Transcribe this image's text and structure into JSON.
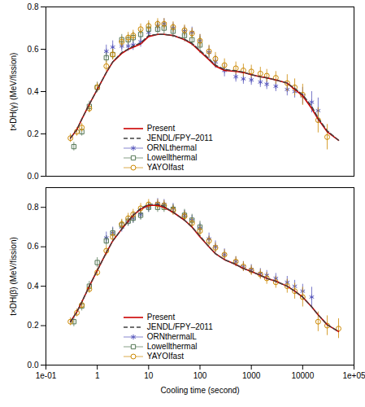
{
  "chart_data": [
    {
      "type": "line",
      "ylabel": "t×DH(γ) (MeV/fission)",
      "log": "x",
      "xlim": [
        0.1,
        100000.0
      ],
      "ylim": [
        0,
        0.8
      ],
      "yticks": [
        {
          "value": 0,
          "label": "0.0"
        },
        0.2,
        0.4,
        0.6,
        0.8
      ],
      "grid": false,
      "legend": "lower left",
      "tick_labels": "y",
      "series": [
        {
          "name": "Present",
          "type": "line",
          "color": "#cc0000",
          "line_style": "solid",
          "x": [
            0.3,
            0.4,
            0.5,
            0.7,
            1.0,
            1.5,
            2.0,
            3.0,
            4.0,
            5.0,
            7.0,
            10.0,
            15.0,
            20.0,
            30.0,
            50.0,
            70.0,
            100.0,
            150.0,
            200.0,
            300.0,
            500.0,
            700.0,
            1000.0,
            1500.0,
            2000.0,
            3000.0,
            5000.0,
            7000.0,
            10000.0,
            15000.0,
            20000.0,
            30000.0,
            50000.0
          ],
          "values": [
            0.18,
            0.22,
            0.27,
            0.34,
            0.41,
            0.49,
            0.54,
            0.58,
            0.6,
            0.61,
            0.625,
            0.66,
            0.67,
            0.67,
            0.665,
            0.645,
            0.625,
            0.59,
            0.55,
            0.52,
            0.5,
            0.495,
            0.49,
            0.48,
            0.47,
            0.465,
            0.455,
            0.44,
            0.41,
            0.38,
            0.32,
            0.27,
            0.21,
            0.17
          ]
        },
        {
          "name": "JENDL/FPY–2011",
          "type": "line",
          "color": "#404040",
          "line_style": "dashed",
          "x": [
            0.3,
            0.4,
            0.5,
            0.7,
            1.0,
            1.5,
            2.0,
            3.0,
            4.0,
            5.0,
            7.0,
            10.0,
            15.0,
            20.0,
            30.0,
            50.0,
            70.0,
            100.0,
            150.0,
            200.0,
            300.0,
            500.0,
            700.0,
            1000.0,
            1500.0,
            2000.0,
            3000.0,
            5000.0,
            7000.0,
            10000.0,
            15000.0,
            20000.0,
            30000.0,
            50000.0
          ],
          "values": [
            0.18,
            0.22,
            0.27,
            0.34,
            0.41,
            0.49,
            0.54,
            0.585,
            0.6,
            0.615,
            0.63,
            0.665,
            0.67,
            0.67,
            0.665,
            0.648,
            0.628,
            0.595,
            0.555,
            0.525,
            0.505,
            0.498,
            0.492,
            0.48,
            0.47,
            0.465,
            0.455,
            0.44,
            0.415,
            0.385,
            0.33,
            0.275,
            0.215,
            0.17
          ]
        },
        {
          "name": "ORNLthermal",
          "type": "scatter",
          "color": "#5555bb",
          "marker": "asterisk",
          "x": [
            1.5,
            2.0,
            3.0,
            4.0,
            5.0,
            7.0,
            10.0,
            15.0,
            20.0,
            30.0,
            50.0,
            70.0,
            100.0,
            150.0,
            200.0,
            300.0,
            500.0,
            700.0,
            1000.0,
            1500.0,
            2000.0,
            3000.0,
            5000.0,
            7000.0,
            10000.0,
            15000.0,
            20000.0
          ],
          "values": [
            0.59,
            0.61,
            0.615,
            0.615,
            0.62,
            0.635,
            0.68,
            0.71,
            0.72,
            0.7,
            0.685,
            0.68,
            0.64,
            0.585,
            0.54,
            0.5,
            0.47,
            0.46,
            0.455,
            0.445,
            0.435,
            0.425,
            0.41,
            0.4,
            0.38,
            0.35,
            0.31
          ],
          "errors": [
            0.03,
            0.03,
            0.025,
            0.025,
            0.025,
            0.025,
            0.025,
            0.025,
            0.025,
            0.025,
            0.025,
            0.025,
            0.03,
            0.03,
            0.03,
            0.03,
            0.025,
            0.025,
            0.025,
            0.025,
            0.025,
            0.025,
            0.03,
            0.03,
            0.04,
            0.05,
            0.06
          ]
        },
        {
          "name": "Lowellthermal",
          "type": "scatter",
          "color": "#557755",
          "marker": "square",
          "x": [
            0.35,
            0.5,
            0.7,
            1.0,
            1.5,
            2.0,
            3.0,
            4.0,
            5.0,
            7.0,
            10.0,
            15.0,
            20.0,
            30.0,
            50.0,
            70.0,
            100.0
          ],
          "values": [
            0.14,
            0.21,
            0.33,
            0.42,
            0.56,
            0.575,
            0.645,
            0.645,
            0.655,
            0.67,
            0.695,
            0.695,
            0.7,
            0.685,
            0.665,
            0.645,
            0.62
          ],
          "errors": [
            0.02,
            0.02,
            0.025,
            0.025,
            0.025,
            0.025,
            0.025,
            0.025,
            0.025,
            0.025,
            0.03,
            0.03,
            0.03,
            0.03,
            0.03,
            0.03,
            0.04
          ]
        },
        {
          "name": "YAYOIfast",
          "type": "scatter",
          "color": "#cc8800",
          "marker": "circle",
          "x": [
            0.3,
            0.4,
            0.5,
            0.7,
            1.0,
            1.5,
            2.0,
            3.0,
            4.0,
            5.0,
            7.0,
            10.0,
            15.0,
            20.0,
            30.0,
            50.0,
            70.0,
            100.0,
            150.0,
            200.0,
            300.0,
            500.0,
            700.0,
            1000.0,
            1500.0,
            2000.0,
            3000.0,
            5000.0,
            7000.0,
            10000.0,
            20000.0,
            30000.0
          ],
          "values": [
            0.18,
            0.21,
            0.23,
            0.32,
            0.42,
            0.52,
            0.575,
            0.635,
            0.655,
            0.665,
            0.695,
            0.71,
            0.72,
            0.72,
            0.705,
            0.69,
            0.675,
            0.64,
            0.59,
            0.555,
            0.525,
            0.51,
            0.5,
            0.495,
            0.485,
            0.475,
            0.465,
            0.44,
            0.42,
            0.385,
            0.265,
            0.185
          ],
          "errors": [
            0.02,
            0.02,
            0.02,
            0.02,
            0.02,
            0.025,
            0.025,
            0.025,
            0.025,
            0.025,
            0.025,
            0.025,
            0.025,
            0.025,
            0.025,
            0.025,
            0.025,
            0.03,
            0.03,
            0.03,
            0.03,
            0.03,
            0.03,
            0.03,
            0.03,
            0.03,
            0.03,
            0.04,
            0.04,
            0.05,
            0.06,
            0.06
          ]
        }
      ]
    },
    {
      "type": "line",
      "xlabel": "Cooling time (second)",
      "ylabel": "t×DH(β) (MeV/fission)",
      "log": "x",
      "xlim": [
        0.1,
        100000.0
      ],
      "xticks": [
        {
          "value": 0.1,
          "label": "1e-01"
        },
        1,
        10,
        100,
        1000,
        10000,
        {
          "value": 100000,
          "label": "1e+05"
        }
      ],
      "ylim": [
        0,
        0.9
      ],
      "yticks": [
        {
          "value": 0,
          "label": "0.0"
        },
        0.2,
        0.4,
        0.6,
        0.8
      ],
      "grid": false,
      "legend": "lower left",
      "series": [
        {
          "name": "Present",
          "type": "line",
          "color": "#cc0000",
          "line_style": "solid",
          "x": [
            0.3,
            0.4,
            0.5,
            0.7,
            1.0,
            1.5,
            2.0,
            3.0,
            4.0,
            5.0,
            7.0,
            10.0,
            15.0,
            20.0,
            30.0,
            50.0,
            70.0,
            100.0,
            150.0,
            200.0,
            300.0,
            500.0,
            700.0,
            1000.0,
            1500.0,
            2000.0,
            3000.0,
            5000.0,
            7000.0,
            10000.0,
            15000.0,
            20000.0,
            30000.0,
            50000.0
          ],
          "values": [
            0.22,
            0.27,
            0.32,
            0.4,
            0.48,
            0.57,
            0.63,
            0.69,
            0.73,
            0.76,
            0.79,
            0.81,
            0.81,
            0.8,
            0.775,
            0.735,
            0.7,
            0.65,
            0.6,
            0.565,
            0.535,
            0.51,
            0.49,
            0.475,
            0.455,
            0.44,
            0.425,
            0.4,
            0.375,
            0.345,
            0.295,
            0.255,
            0.205,
            0.17
          ]
        },
        {
          "name": "JENDL/FPY–2011",
          "type": "line",
          "color": "#404040",
          "line_style": "dashed",
          "x": [
            0.3,
            0.4,
            0.5,
            0.7,
            1.0,
            1.5,
            2.0,
            3.0,
            4.0,
            5.0,
            7.0,
            10.0,
            15.0,
            20.0,
            30.0,
            50.0,
            70.0,
            100.0,
            150.0,
            200.0,
            300.0,
            500.0,
            700.0,
            1000.0,
            1500.0,
            2000.0,
            3000.0,
            5000.0,
            7000.0,
            10000.0,
            15000.0,
            20000.0,
            30000.0,
            50000.0
          ],
          "values": [
            0.22,
            0.27,
            0.32,
            0.4,
            0.48,
            0.57,
            0.63,
            0.69,
            0.73,
            0.76,
            0.795,
            0.815,
            0.815,
            0.805,
            0.775,
            0.735,
            0.7,
            0.655,
            0.6,
            0.565,
            0.535,
            0.51,
            0.49,
            0.475,
            0.455,
            0.44,
            0.425,
            0.4,
            0.375,
            0.345,
            0.295,
            0.255,
            0.205,
            0.17
          ]
        },
        {
          "name": "ORNthermalL",
          "type": "scatter",
          "color": "#5555bb",
          "marker": "asterisk",
          "x": [
            1.5,
            2.0,
            3.0,
            4.0,
            5.0,
            7.0,
            10.0,
            15.0,
            20.0,
            30.0,
            50.0,
            70.0,
            100.0,
            150.0,
            200.0,
            300.0,
            500.0,
            700.0,
            1000.0,
            1500.0,
            2000.0,
            3000.0,
            5000.0,
            7000.0,
            10000.0,
            15000.0
          ],
          "values": [
            0.645,
            0.67,
            0.7,
            0.73,
            0.745,
            0.765,
            0.8,
            0.82,
            0.815,
            0.795,
            0.76,
            0.735,
            0.695,
            0.64,
            0.6,
            0.56,
            0.525,
            0.5,
            0.485,
            0.465,
            0.455,
            0.44,
            0.42,
            0.4,
            0.375,
            0.345
          ],
          "errors": [
            0.03,
            0.03,
            0.025,
            0.025,
            0.025,
            0.025,
            0.025,
            0.025,
            0.025,
            0.025,
            0.025,
            0.025,
            0.025,
            0.03,
            0.03,
            0.03,
            0.025,
            0.025,
            0.025,
            0.025,
            0.025,
            0.025,
            0.03,
            0.03,
            0.035,
            0.05
          ]
        },
        {
          "name": "Lowellthermal",
          "type": "scatter",
          "color": "#557755",
          "marker": "square",
          "x": [
            0.35,
            0.5,
            0.7,
            1.0,
            1.5,
            2.0,
            3.0,
            4.0,
            5.0,
            7.0,
            10.0,
            15.0,
            20.0,
            30.0,
            50.0,
            70.0,
            100.0
          ],
          "values": [
            0.22,
            0.3,
            0.4,
            0.52,
            0.63,
            0.67,
            0.71,
            0.73,
            0.745,
            0.76,
            0.8,
            0.8,
            0.8,
            0.79,
            0.76,
            0.735,
            0.7
          ],
          "errors": [
            0.025,
            0.025,
            0.025,
            0.025,
            0.025,
            0.025,
            0.025,
            0.025,
            0.025,
            0.025,
            0.025,
            0.025,
            0.025,
            0.025,
            0.03,
            0.03,
            0.03
          ]
        },
        {
          "name": "YAYOIfast",
          "type": "scatter",
          "color": "#cc8800",
          "marker": "circle",
          "x": [
            0.3,
            0.4,
            0.5,
            0.7,
            1.0,
            1.5,
            2.0,
            3.0,
            4.0,
            5.0,
            7.0,
            10.0,
            15.0,
            20.0,
            30.0,
            50.0,
            70.0,
            100.0,
            150.0,
            200.0,
            300.0,
            500.0,
            700.0,
            1000.0,
            1500.0,
            2000.0,
            3000.0,
            5000.0,
            7000.0,
            10000.0,
            20000.0,
            30000.0,
            50000.0
          ],
          "values": [
            0.22,
            0.265,
            0.305,
            0.385,
            0.47,
            0.58,
            0.65,
            0.715,
            0.745,
            0.765,
            0.795,
            0.815,
            0.815,
            0.81,
            0.785,
            0.755,
            0.72,
            0.68,
            0.63,
            0.595,
            0.56,
            0.525,
            0.5,
            0.48,
            0.46,
            0.44,
            0.42,
            0.4,
            0.375,
            0.345,
            0.22,
            0.2,
            0.185
          ],
          "errors": [
            0.02,
            0.02,
            0.02,
            0.02,
            0.02,
            0.025,
            0.025,
            0.025,
            0.025,
            0.025,
            0.025,
            0.025,
            0.025,
            0.025,
            0.025,
            0.025,
            0.025,
            0.025,
            0.025,
            0.025,
            0.025,
            0.025,
            0.025,
            0.025,
            0.025,
            0.03,
            0.03,
            0.035,
            0.04,
            0.05,
            0.05,
            0.05,
            0.05
          ]
        }
      ]
    }
  ]
}
